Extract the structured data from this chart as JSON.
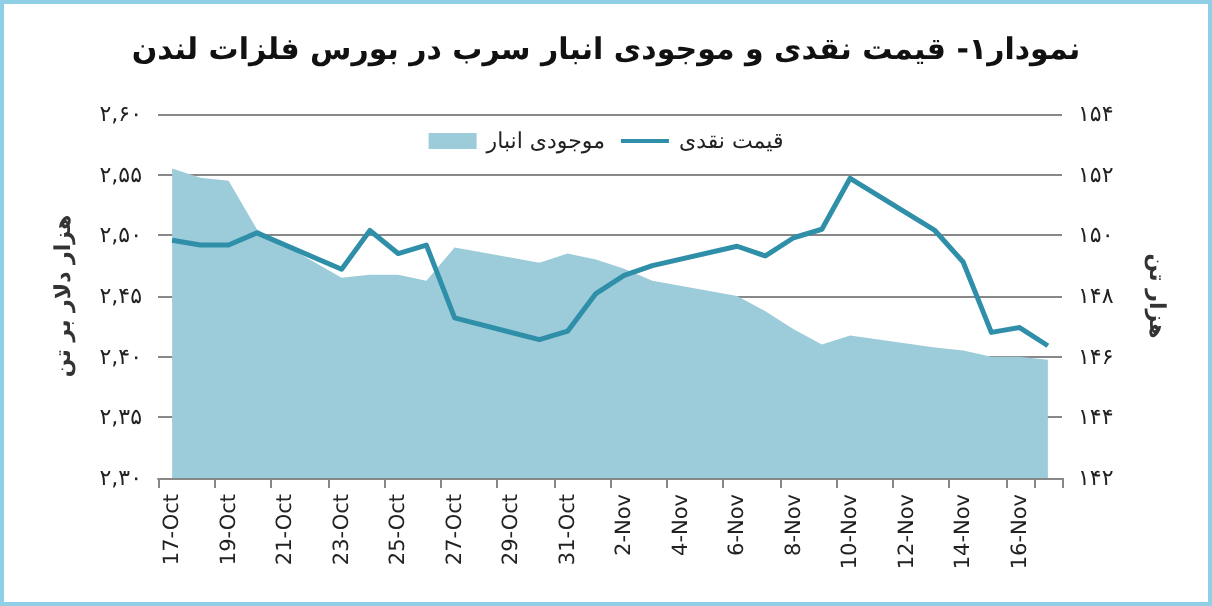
{
  "chart_data": {
    "type": "line",
    "title": "نمودار۱- قیمت نقدی و موجودی انبار سرب در بورس فلزات لندن",
    "ylabel": "هزار دلار بر تن",
    "y2label": "هزار تن",
    "categories": [
      "17-Oct",
      null,
      "19-Oct",
      null,
      "21-Oct",
      null,
      "23-Oct",
      null,
      "25-Oct",
      null,
      "27-Oct",
      null,
      "29-Oct",
      null,
      "31-Oct",
      null,
      "2-Nov",
      null,
      "4-Nov",
      null,
      "6-Nov",
      null,
      "8-Nov",
      null,
      "10-Nov",
      null,
      "12-Nov",
      null,
      "14-Nov",
      null,
      "16-Nov",
      null
    ],
    "series": [
      {
        "name": "موجودی انبار",
        "type": "area",
        "axis": "y2",
        "color": "#9ccbd9",
        "values": [
          152.2,
          151.9,
          151.8,
          150.2,
          null,
          null,
          148.6,
          148.7,
          148.7,
          148.5,
          149.6,
          null,
          null,
          149.1,
          149.4,
          149.2,
          148.9,
          148.5,
          null,
          null,
          148.0,
          147.5,
          146.9,
          146.4,
          146.7,
          null,
          null,
          146.3,
          146.2,
          146.0,
          146.0,
          145.9
        ]
      },
      {
        "name": "قیمت نقدی",
        "type": "line",
        "color": "#2f8fa9",
        "values": [
          2.496,
          2.492,
          2.492,
          2.502,
          null,
          null,
          2.472,
          2.504,
          2.485,
          2.492,
          2.432,
          null,
          null,
          2.414,
          2.421,
          2.452,
          2.467,
          2.475,
          null,
          null,
          2.491,
          2.483,
          2.498,
          2.505,
          2.547,
          null,
          null,
          2.504,
          2.478,
          2.42,
          2.424,
          2.409
        ]
      }
    ],
    "ylim": [
      2.3,
      2.6
    ],
    "yticks": [
      {
        "value": 2.3,
        "label": "۲,۳۰"
      },
      {
        "value": 2.35,
        "label": "۲,۳۵"
      },
      {
        "value": 2.4,
        "label": "۲,۴۰"
      },
      {
        "value": 2.45,
        "label": "۲,۴۵"
      },
      {
        "value": 2.5,
        "label": "۲,۵۰"
      },
      {
        "value": 2.55,
        "label": "۲,۵۵"
      },
      {
        "value": 2.6,
        "label": "۲,۶۰"
      }
    ],
    "y2lim": [
      142,
      154
    ],
    "y2ticks": [
      {
        "value": 142,
        "label": "۱۴۲"
      },
      {
        "value": 144,
        "label": "۱۴۴"
      },
      {
        "value": 146,
        "label": "۱۴۶"
      },
      {
        "value": 148,
        "label": "۱۴۸"
      },
      {
        "value": 150,
        "label": "۱۵۰"
      },
      {
        "value": 152,
        "label": "۱۵۲"
      },
      {
        "value": 154,
        "label": "۱۵۴"
      }
    ],
    "grid": "y",
    "legend": "top",
    "marker": "none",
    "line_style": "solid"
  }
}
